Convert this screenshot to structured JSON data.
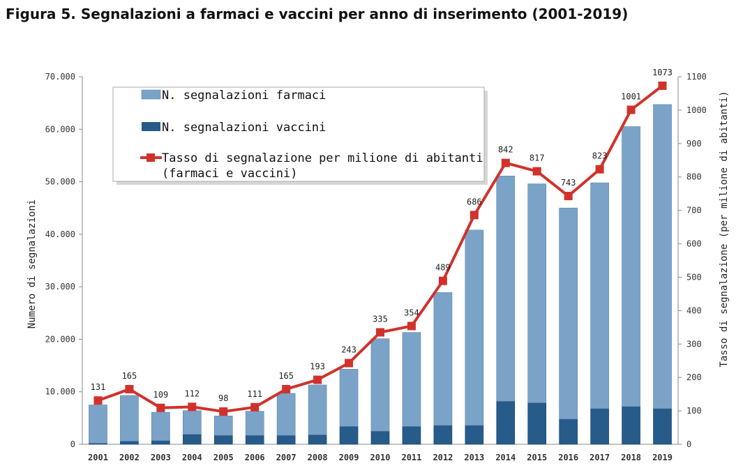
{
  "title": "Figura 5. Segnalazioni a farmaci e vaccini per anno di inserimento (2001-2019)",
  "chart_data": {
    "type": "bar",
    "stacked": true,
    "categories": [
      "2001",
      "2002",
      "2003",
      "2004",
      "2005",
      "2006",
      "2007",
      "2008",
      "2009",
      "2010",
      "2011",
      "2012",
      "2013",
      "2014",
      "2015",
      "2016",
      "2017",
      "2018",
      "2019"
    ],
    "series": [
      {
        "name": "N. segnalazioni farmaci",
        "type": "bar",
        "axis": "left",
        "color": "#7ba3c8",
        "values": [
          7300,
          8700,
          5400,
          4500,
          3700,
          4600,
          8000,
          9500,
          10900,
          17600,
          17900,
          25300,
          37200,
          42900,
          41700,
          40200,
          43000,
          53300,
          57900
        ]
      },
      {
        "name": "N. segnalazioni vaccini",
        "type": "bar",
        "axis": "left",
        "color": "#265b8a",
        "values": [
          200,
          600,
          700,
          1900,
          1700,
          1700,
          1700,
          1800,
          3400,
          2500,
          3400,
          3600,
          3600,
          8200,
          7900,
          4800,
          6800,
          7200,
          6800
        ]
      },
      {
        "name": "Tasso di segnalazione per milione di abitanti (farmaci e vaccini)",
        "type": "line",
        "axis": "right",
        "color": "#d0322b",
        "values": [
          131,
          165,
          109,
          112,
          98,
          111,
          165,
          193,
          243,
          335,
          354,
          489,
          686,
          842,
          817,
          743,
          823,
          1001,
          1073
        ],
        "labels": [
          "131",
          "165",
          "109",
          "112",
          "98",
          "111",
          "165",
          "193",
          "243",
          "335",
          "354",
          "489",
          "686",
          "842",
          "817",
          "743",
          "823",
          "1001",
          "1073"
        ]
      }
    ],
    "ylabel": "Numero di segnalazioni",
    "ylabel_right": "Tasso di segnalazione (per milione di abitanti)",
    "ylim": [
      0,
      70000
    ],
    "ylim_right": [
      0,
      1100
    ],
    "yticks": [
      "0",
      "10.000",
      "20.000",
      "30.000",
      "40.000",
      "50.000",
      "60.000",
      "70.000"
    ],
    "yticks_right": [
      "0",
      "100",
      "200",
      "300",
      "400",
      "500",
      "600",
      "700",
      "800",
      "900",
      "1000",
      "1100"
    ],
    "grid": false,
    "legend_position": "top-left"
  }
}
